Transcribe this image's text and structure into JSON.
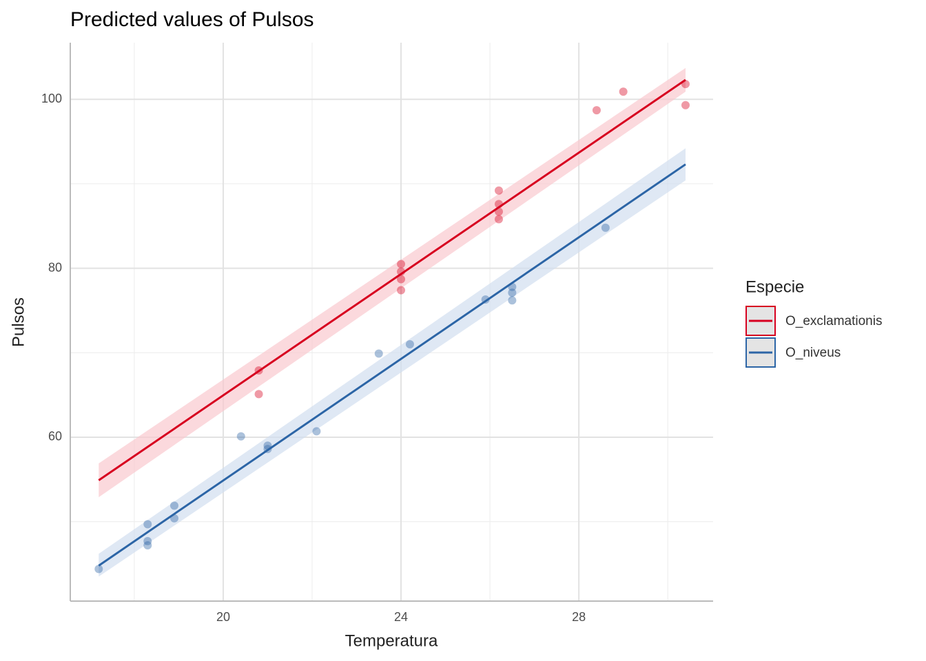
{
  "chart_data": {
    "type": "scatter",
    "title": "Predicted values of Pulsos",
    "x_label": "Temperatura",
    "y_label": "Pulsos",
    "legend_title": "Especie",
    "legend_position": "right",
    "xlim": [
      16.56,
      31.02
    ],
    "ylim": [
      40.6,
      106.7
    ],
    "xticks": [
      20,
      24,
      28
    ],
    "yticks": [
      60,
      80,
      100
    ],
    "xminor": [
      18,
      22,
      26,
      30
    ],
    "yminor": [
      50,
      70,
      90
    ],
    "grid": true,
    "series": [
      {
        "name": "O_exclamationis",
        "color": "#d7001f",
        "band_color": "#f9c9cf",
        "x": [
          20.8,
          20.8,
          24.0,
          24.0,
          24.0,
          24.0,
          26.2,
          26.2,
          26.2,
          26.2,
          28.4,
          29.0,
          30.4,
          30.4
        ],
        "values": [
          67.9,
          65.1,
          80.5,
          79.6,
          78.7,
          77.4,
          89.2,
          87.6,
          86.7,
          85.8,
          98.7,
          100.9,
          101.8,
          99.3
        ],
        "fit_x": [
          17.2,
          30.4
        ],
        "fit_values": [
          54.9,
          102.3
        ],
        "ci_upper": [
          56.9,
          103.7
        ],
        "ci_lower": [
          52.9,
          100.9
        ]
      },
      {
        "name": "O_niveus",
        "color": "#2c65a6",
        "band_color": "#d2def0",
        "x": [
          17.2,
          18.3,
          18.3,
          18.3,
          18.9,
          18.9,
          20.4,
          21.0,
          21.0,
          22.1,
          23.5,
          24.2,
          25.9,
          26.5,
          26.5,
          26.5,
          28.6
        ],
        "values": [
          44.4,
          49.7,
          47.7,
          47.2,
          51.9,
          50.4,
          60.1,
          59.0,
          58.6,
          60.7,
          69.9,
          71.0,
          76.3,
          77.8,
          77.1,
          76.2,
          84.8
        ],
        "fit_x": [
          17.2,
          30.4
        ],
        "fit_values": [
          44.8,
          92.3
        ],
        "ci_upper": [
          46.2,
          94.2
        ],
        "ci_lower": [
          43.5,
          90.4
        ]
      }
    ]
  }
}
